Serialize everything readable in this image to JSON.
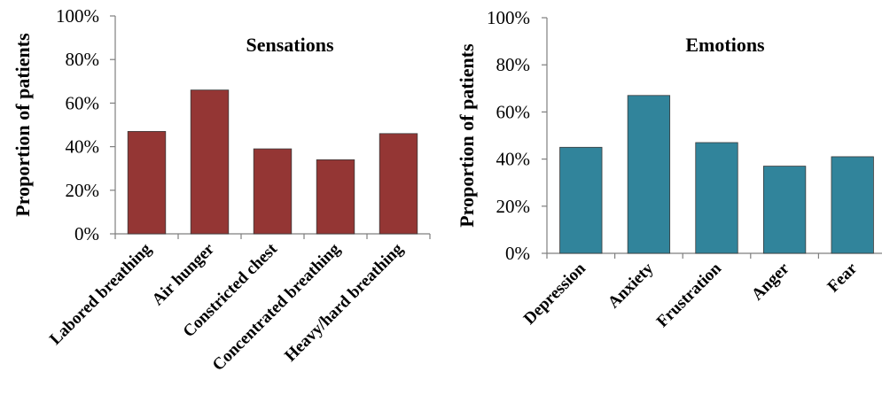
{
  "chart_data": [
    {
      "type": "bar",
      "title": "Sensations",
      "xlabel": "",
      "ylabel": "Proportion of patients",
      "ylim": [
        0,
        100
      ],
      "y_ticks": [
        "0%",
        "20%",
        "40%",
        "60%",
        "80%",
        "100%"
      ],
      "grid": false,
      "categories": [
        "Labored breathing",
        "Air hunger",
        "Constricted chest",
        "Concentrated breathing",
        "Heavy/hard breathing"
      ],
      "values": [
        47,
        66,
        39,
        34,
        46
      ],
      "color": "#943634"
    },
    {
      "type": "bar",
      "title": "Emotions",
      "xlabel": "",
      "ylabel": "Proportion of patients",
      "ylim": [
        0,
        100
      ],
      "y_ticks": [
        "0%",
        "20%",
        "40%",
        "60%",
        "80%",
        "100%"
      ],
      "grid": false,
      "categories": [
        "Depression",
        "Anxiety",
        "Frustration",
        "Anger",
        "Fear"
      ],
      "values": [
        45,
        67,
        47,
        37,
        41
      ],
      "color": "#31849b"
    }
  ]
}
